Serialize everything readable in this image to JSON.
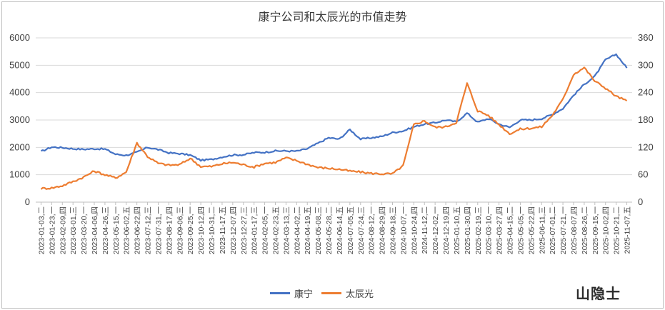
{
  "chart_data": {
    "type": "line",
    "title": "康宁公司和太辰光的市值走势",
    "y_left": {
      "ticks": [
        "0",
        "1000",
        "2000",
        "3000",
        "4000",
        "5000",
        "6000"
      ],
      "range": [
        0,
        6000
      ]
    },
    "y_right": {
      "ticks": [
        "0",
        "60",
        "120",
        "180",
        "240",
        "300",
        "360"
      ],
      "range": [
        0,
        360
      ]
    },
    "x_tick_labels": [
      "2023-01-03,二",
      "2023-01-23,一",
      "2023-02-09,四",
      "2023-03-01,三",
      "2023-03-20,一",
      "2023-04-06,四",
      "2023-04-26,三",
      "2023-05-15,一",
      "2023-06-02,五",
      "2023-06-22,四",
      "2023-07-12,三",
      "2023-07-31,一",
      "2023-08-17,四",
      "2023-09-06,三",
      "2023-09-25,一",
      "2023-10-12,四",
      "2023-10-31,二",
      "2023-11-17,五",
      "2023-12-07,四",
      "2023-12-27,三",
      "2024-01-17,三",
      "2024-02-05,一",
      "2024-02-23,五",
      "2024-03-13,三",
      "2024-04-02,二",
      "2024-04-19,五",
      "2024-05-08,三",
      "2024-05-28,二",
      "2024-06-14,五",
      "2024-07-05,五",
      "2024-07-24,三",
      "2024-08-12,一",
      "2024-08-29,四",
      "2024-09-18,三",
      "2024-10-07,一",
      "2024-10-24,四",
      "2024-11-12,二",
      "2024-12-02,一",
      "2024-12-19,四",
      "2025-01-10,五",
      "2025-01-30,四",
      "2025-02-19,三",
      "2025-03-10,一",
      "2025-03-27,四",
      "2025-04-15,二",
      "2025-05-05,一",
      "2025-05-22,四",
      "2025-06-11,三",
      "2025-07-01,二",
      "2025-07-21,一",
      "2025-08-07,四",
      "2025-08-26,二",
      "2025-09-15,一",
      "2025-10-02,四",
      "2025-10-21,二",
      "2025-11-07,五"
    ],
    "series": [
      {
        "name": "康宁",
        "axis": "left",
        "color": "#4472c4",
        "values": [
          1850,
          2010,
          1990,
          1950,
          1930,
          1950,
          1940,
          1750,
          1710,
          1820,
          2000,
          1920,
          1800,
          1770,
          1720,
          1530,
          1560,
          1650,
          1720,
          1730,
          1810,
          1820,
          1870,
          1870,
          1860,
          1950,
          2150,
          2350,
          2300,
          2650,
          2300,
          2350,
          2400,
          2540,
          2600,
          2750,
          2850,
          2900,
          3000,
          2930,
          3250,
          2920,
          3050,
          2850,
          2730,
          3000,
          3000,
          3050,
          3200,
          3420,
          3900,
          4300,
          4600,
          5200,
          5400,
          4900
        ]
      },
      {
        "name": "太辰光",
        "axis": "right",
        "color": "#ed7d31",
        "values": [
          30,
          31,
          36,
          45,
          55,
          68,
          60,
          53,
          66,
          130,
          100,
          85,
          81,
          82,
          96,
          78,
          78,
          84,
          87,
          82,
          77,
          85,
          87,
          97,
          91,
          83,
          76,
          74,
          72,
          68,
          66,
          63,
          62,
          62,
          80,
          170,
          178,
          164,
          165,
          175,
          260,
          200,
          190,
          170,
          150,
          160,
          162,
          165,
          190,
          225,
          280,
          295,
          265,
          250,
          232,
          222
        ]
      }
    ]
  },
  "legend": {
    "item1": "康宁",
    "item2": "太辰光"
  },
  "watermark": "山隐士"
}
